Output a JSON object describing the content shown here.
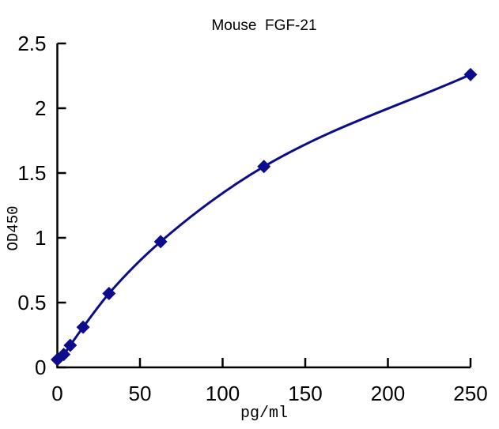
{
  "page": {
    "background": "#ffffff"
  },
  "chart_data": {
    "type": "line",
    "title": "Mouse  FGF-21",
    "xlabel": "pg/ml",
    "ylabel": "OD450",
    "x": [
      0,
      3.9,
      7.8,
      15.6,
      31.25,
      62.5,
      125,
      250
    ],
    "y": [
      0.06,
      0.1,
      0.17,
      0.31,
      0.57,
      0.97,
      1.55,
      2.26
    ],
    "xlim": [
      0,
      250
    ],
    "ylim": [
      0,
      2.5
    ],
    "xticks": [
      0,
      50,
      100,
      150,
      200,
      250
    ],
    "yticks": [
      0,
      0.5,
      1,
      1.5,
      2,
      2.5
    ],
    "grid": false,
    "legend_position": "none",
    "marker": "diamond",
    "marker_size": 8.5,
    "line_width": 3,
    "line_color": "#0d0d8c",
    "marker_color": "#0d0d8c",
    "axis_color": "#000000",
    "text_color": "#000000",
    "tick_direction": "in"
  }
}
